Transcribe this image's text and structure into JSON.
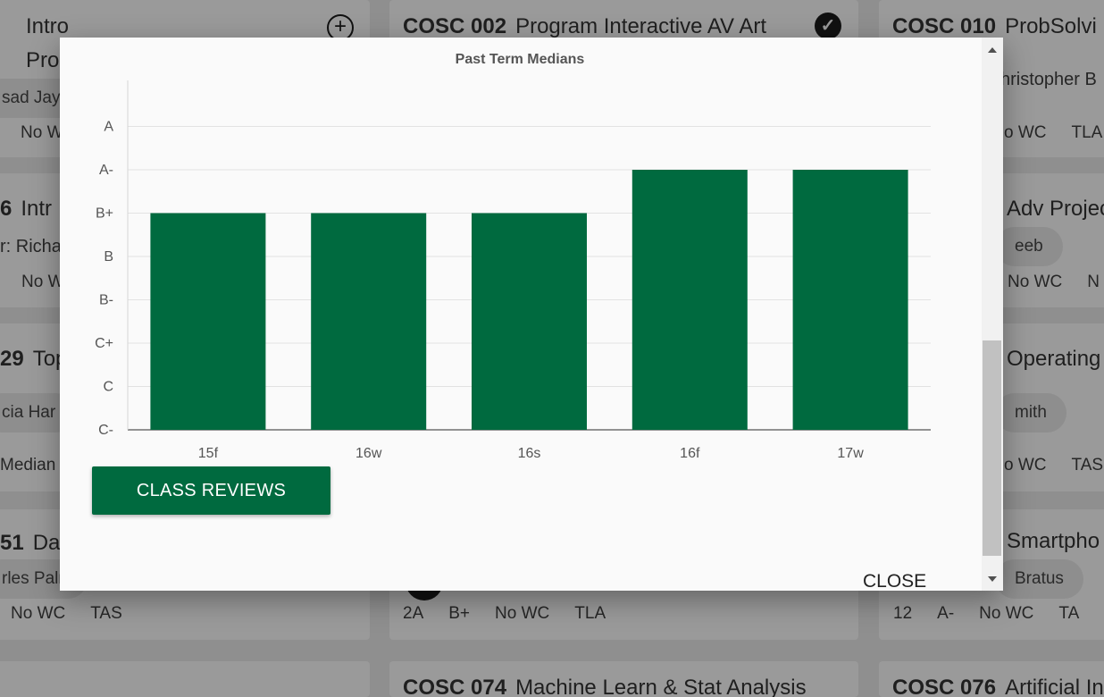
{
  "background": {
    "col1": {
      "c1": {
        "title_line1": "Intro",
        "title_line2": "Pro",
        "chip": "sad Jaya",
        "stat": "No W"
      },
      "c2": {
        "num": "6",
        "title": "Intr",
        "sub": "r: Richa",
        "stat": "No W"
      },
      "c3": {
        "num": "29",
        "title": "Top",
        "chip": "cia Har",
        "stat": "Median"
      },
      "c4": {
        "num": "51",
        "title": "Dat",
        "chip": "rles Paln",
        "stats": [
          "No WC",
          "TAS"
        ]
      }
    },
    "col2": {
      "c1": {
        "code": "COSC 002",
        "title": "Program Interactive AV Art"
      },
      "c4": {
        "stats": [
          "2A",
          "B+",
          "No WC",
          "TLA"
        ]
      },
      "c5": {
        "code": "COSC 074",
        "title": "Machine Learn & Stat Analysis"
      }
    },
    "col3": {
      "c1": {
        "code": "COSC 010",
        "title": "ProbSolvi",
        "sub": "hristopher B",
        "stats": [
          "o WC",
          "TLA"
        ]
      },
      "c2": {
        "title": "Adv Projec",
        "chip": "eeb",
        "stats": [
          "No WC",
          "N"
        ]
      },
      "c3": {
        "title": "Operating",
        "chip": "mith",
        "stats": [
          "o WC",
          "TAS"
        ]
      },
      "c4": {
        "title": "Smartpho",
        "chip": "Bratus",
        "stats": [
          "12",
          "A-",
          "No WC",
          "TA"
        ]
      },
      "c5": {
        "code": "COSC 076",
        "title": "Artificial Int"
      }
    }
  },
  "modal": {
    "reviews_button": "CLASS REVIEWS",
    "close_button": "CLOSE"
  },
  "chart_data": {
    "type": "bar",
    "title": "Past Term Medians",
    "categories": [
      "15f",
      "16w",
      "16s",
      "16f",
      "17w"
    ],
    "values": [
      "B+",
      "B+",
      "B+",
      "A-",
      "A-"
    ],
    "y_scale": [
      "C-",
      "C",
      "C+",
      "B-",
      "B",
      "B+",
      "A-",
      "A"
    ],
    "bar_color": "#006a3f",
    "grid": true
  },
  "colors": {
    "accent": "#006a3f"
  }
}
